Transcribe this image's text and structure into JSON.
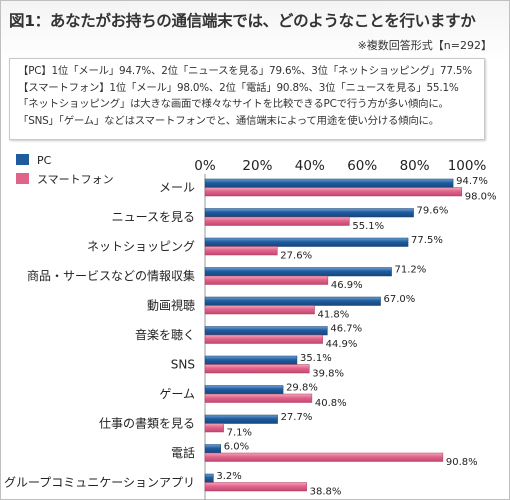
{
  "title": "図1：あなたがお持ちの通信端末では、どのようなことを行いますか",
  "note": "※複数回答形式【n=292】",
  "summary": [
    "【PC】1位「メール」94.7%、2位「ニュースを見る」79.6%、3位「ネットショッピング」77.5%",
    "【スマートフォン】1位「メール」98.0%、2位「電話」90.8%、3位「ニュースを見る」55.1%",
    "「ネットショッピング」は大きな画面で様々なサイトを比較できるPCで行う方が多い傾向に。",
    "「SNS」「ゲーム」などはスマートフォンでと、通信端末によって用途を使い分ける傾向に。"
  ],
  "colors": {
    "pc": "#1f5c9e",
    "smartphone": "#e0648a"
  },
  "chart_data": {
    "type": "bar",
    "orientation": "horizontal",
    "categories": [
      "メール",
      "ニュースを見る",
      "ネットショッピング",
      "商品・サービスなどの情報収集",
      "動画視聴",
      "音楽を聴く",
      "SNS",
      "ゲーム",
      "仕事の書類を見る",
      "電話",
      "グループコミュニケーションアプリ"
    ],
    "series": [
      {
        "name": "PC",
        "values": [
          94.7,
          79.6,
          77.5,
          71.2,
          67.0,
          46.7,
          35.1,
          29.8,
          27.7,
          6.0,
          3.2
        ],
        "labels": [
          "94.7%",
          "79.6%",
          "77.5%",
          "71.2%",
          "67.0%",
          "46.7%",
          "35.1%",
          "29.8%",
          "27.7%",
          "6.0%",
          "3.2%"
        ]
      },
      {
        "name": "スマートフォン",
        "values": [
          98.0,
          55.1,
          27.6,
          46.9,
          41.8,
          44.9,
          39.8,
          40.8,
          7.1,
          90.8,
          38.8
        ],
        "labels": [
          "98.0%",
          "55.1%",
          "27.6%",
          "46.9%",
          "41.8%",
          "44.9%",
          "39.8%",
          "40.8%",
          "7.1%",
          "90.8%",
          "38.8%"
        ]
      }
    ],
    "ticks": [
      "0%",
      "20%",
      "40%",
      "60%",
      "80%",
      "100%"
    ],
    "xlim": [
      0,
      100
    ],
    "grid": false,
    "legend": "top-left"
  }
}
